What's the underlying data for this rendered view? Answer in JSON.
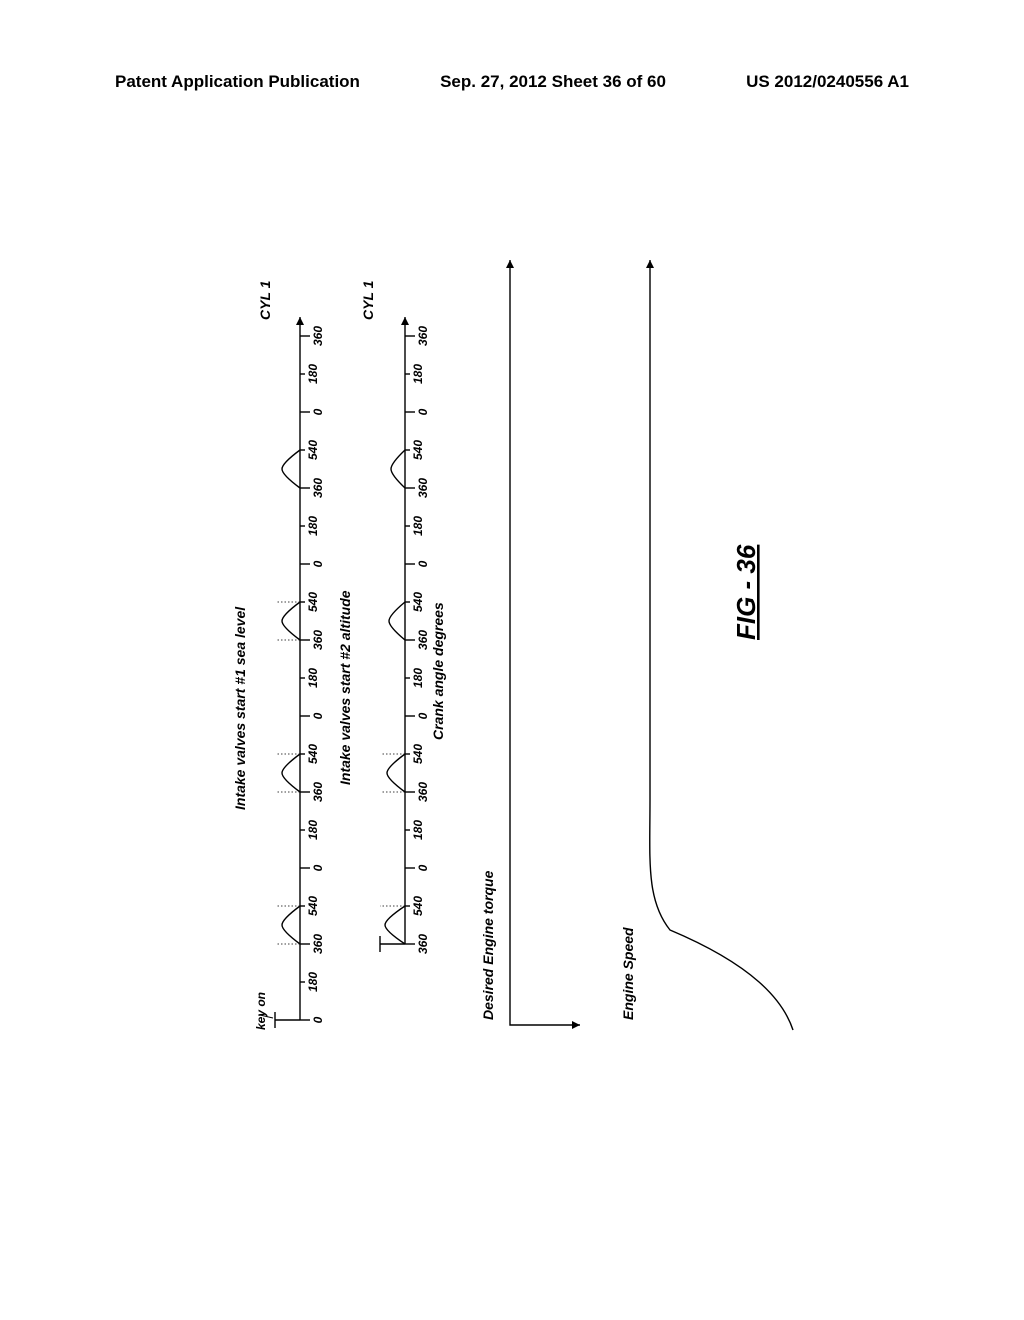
{
  "header": {
    "left": "Patent Application Publication",
    "center": "Sep. 27, 2012  Sheet 36 of 60",
    "right": "US 2012/0240556 A1"
  },
  "diagram": {
    "title_top": "Intake valves start #1 sea level",
    "label_keyon": "key on",
    "label_cyl1_top": "CYL 1",
    "title_mid": "Intake valves start #2 altitude",
    "label_cyl1_bot": "CYL 1",
    "crank_label": "Crank angle degrees",
    "torque_label": "Desired Engine torque",
    "speed_label": "Engine Speed",
    "fig_label": "FIG - 36",
    "ticks_top": [
      "0",
      "180",
      "360",
      "540",
      "0",
      "180",
      "360",
      "540",
      "0",
      "180",
      "360",
      "540",
      "0",
      "180",
      "360",
      "540",
      "0",
      "180",
      "360"
    ],
    "ticks_bot": [
      "360",
      "540",
      "0",
      "180",
      "360",
      "540",
      "0",
      "180",
      "360",
      "540",
      "0",
      "180",
      "360",
      "540",
      "0",
      "180",
      "360"
    ],
    "peak_height_sea": 18,
    "peak_heights_alt": [
      20,
      18,
      16,
      14,
      13,
      12,
      11,
      11,
      11
    ],
    "tick_spacing": 38,
    "tick_major_h": 10,
    "tick_minor_h": 5,
    "line_stroke": "#000000",
    "line_width": 1.4,
    "dash_pattern": "1.5,2",
    "tick_font_size": 12,
    "label_font_size": 14,
    "fig_label_font_size": 26,
    "bg": "#ffffff"
  }
}
